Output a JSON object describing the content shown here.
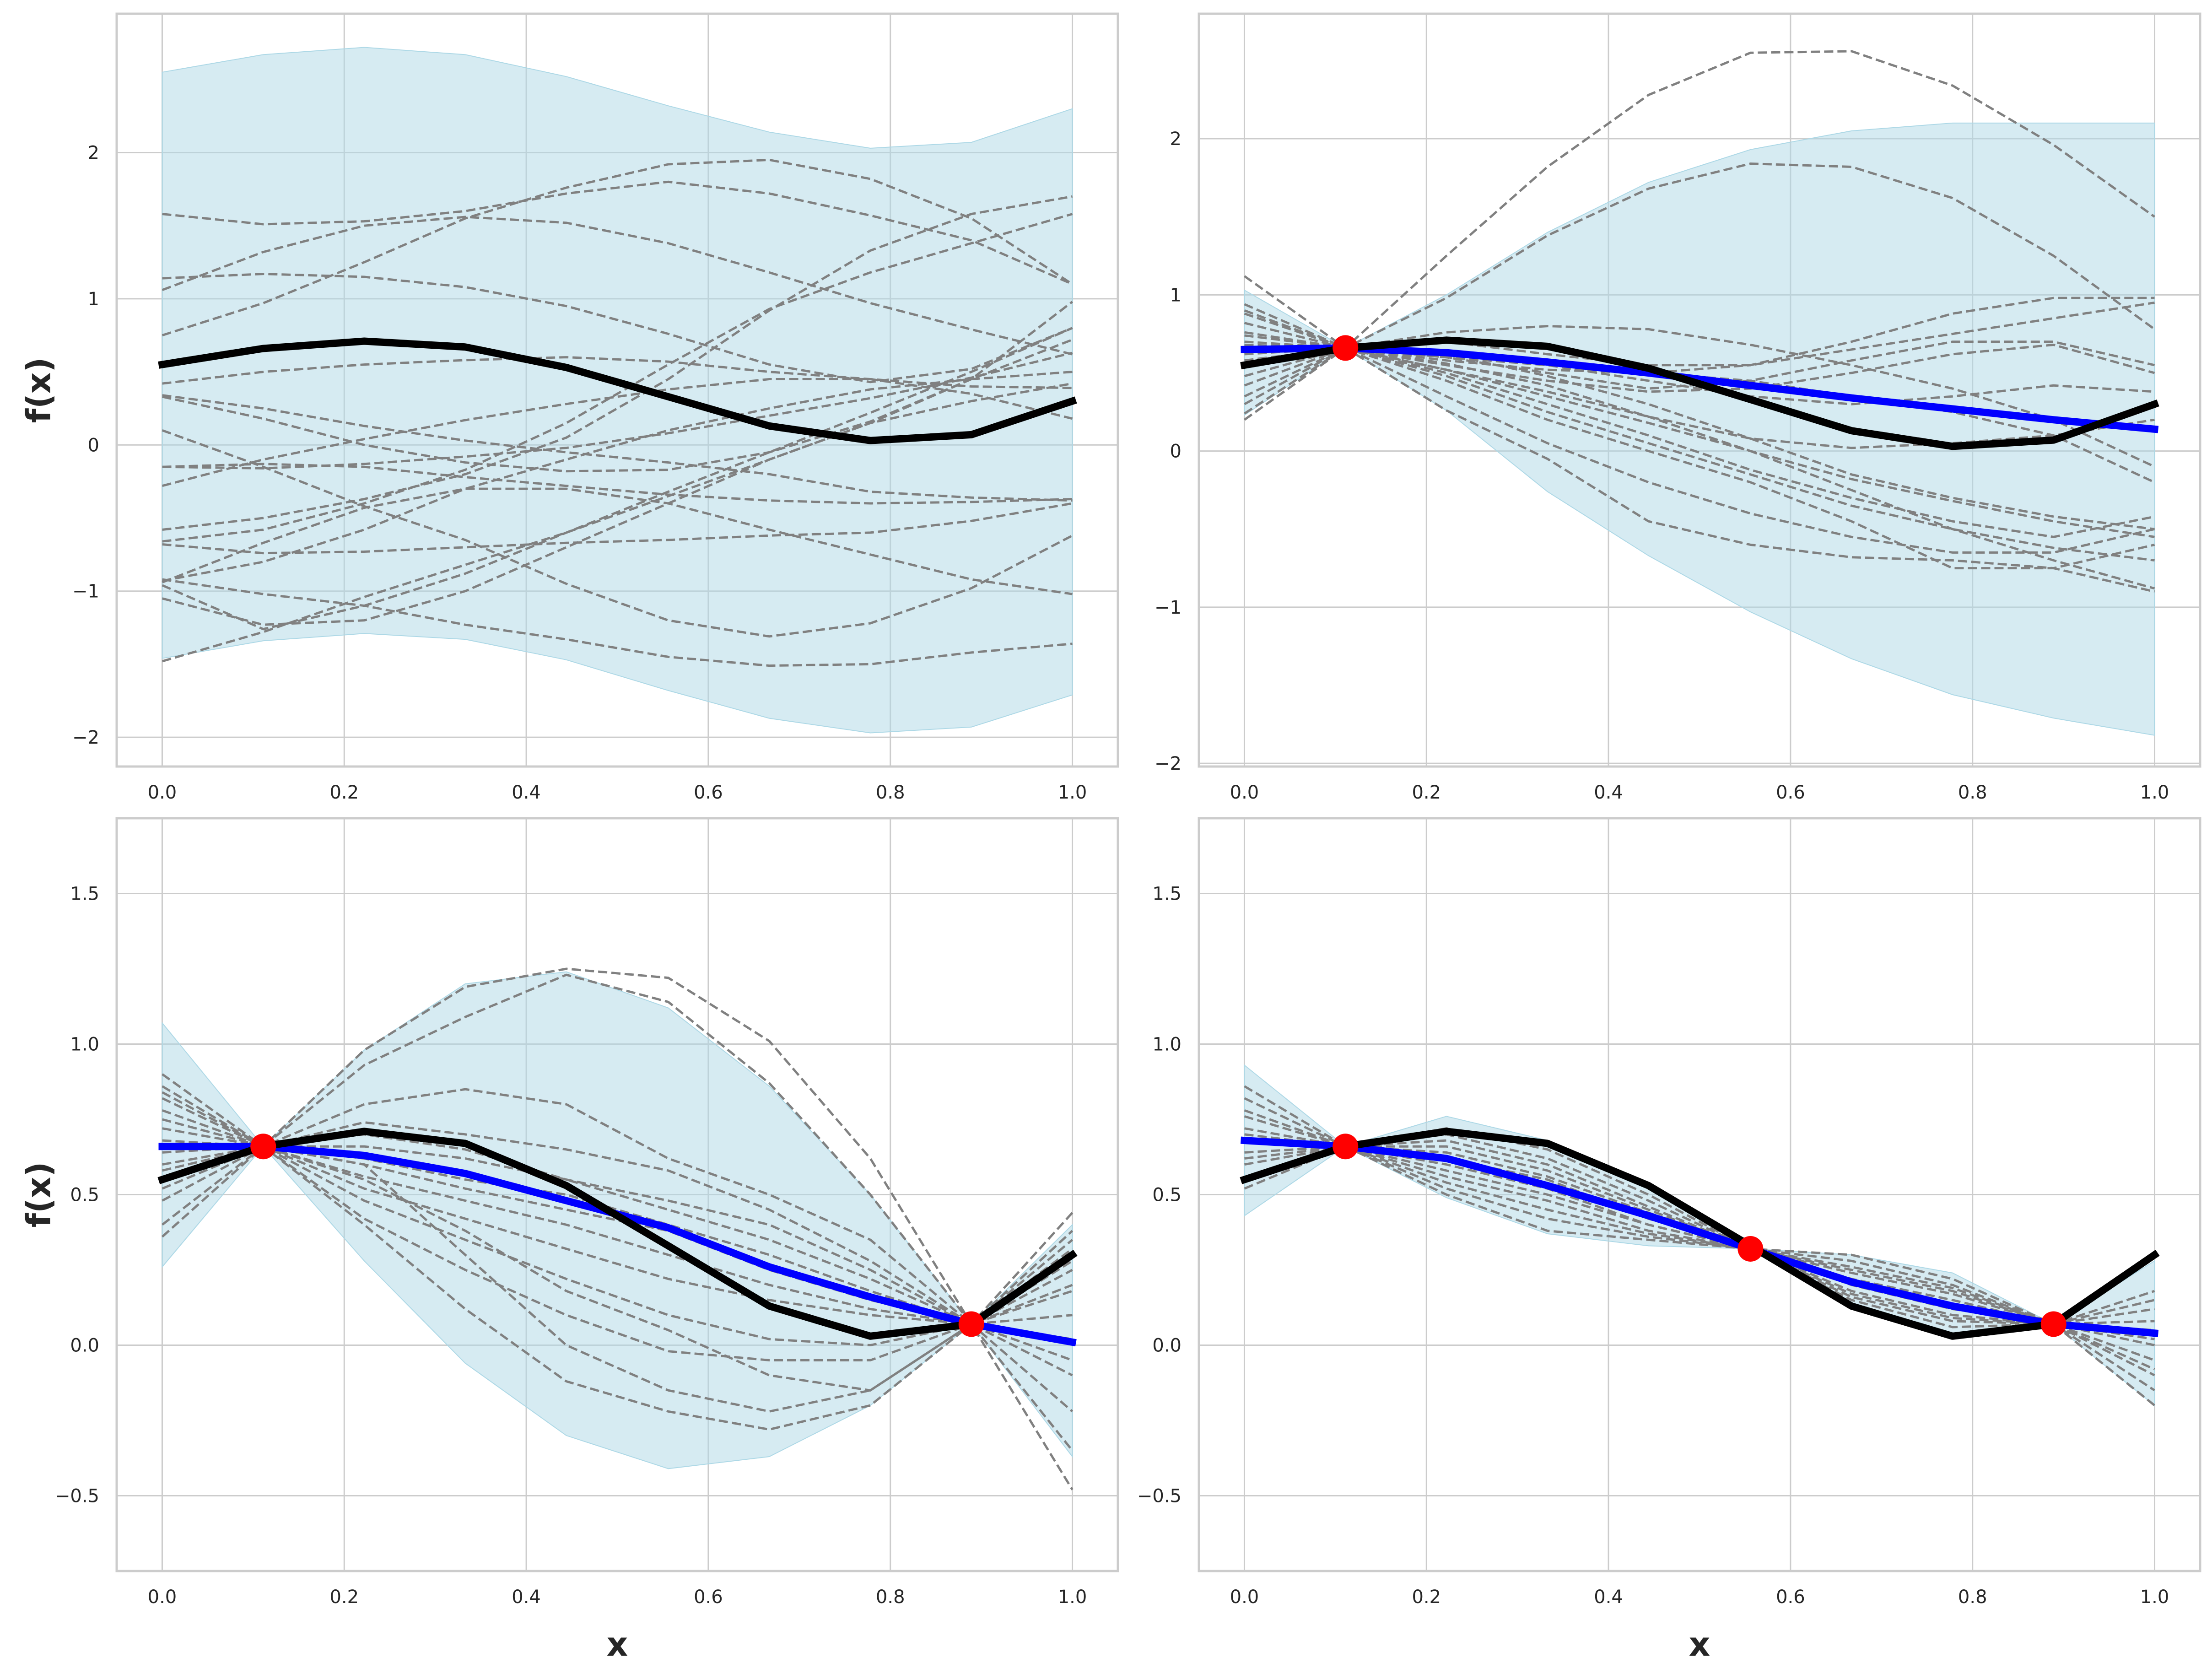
{
  "figure": {
    "colors": {
      "background": "#ffffff",
      "axes_face": "#ffffff",
      "axes_edge": "#cccccc",
      "grid": "#cccccc",
      "band": "#add8e6",
      "samples": "#808080",
      "true_function": "#000000",
      "posterior_mean": "#0000ff",
      "observations": "#ff0000",
      "text": "#262626"
    }
  },
  "chart_data": [
    {
      "type": "line",
      "title": "",
      "xlabel": "",
      "ylabel": "f(x)",
      "xlim": [
        -0.05,
        1.05
      ],
      "ylim": [
        -2.2,
        2.95
      ],
      "grid": true,
      "xticks": [
        0.0,
        0.2,
        0.4,
        0.6,
        0.8,
        1.0
      ],
      "xtick_labels": [
        "0.0",
        "0.2",
        "0.4",
        "0.6",
        "0.8",
        "1.0"
      ],
      "yticks": [
        -2,
        -1,
        0,
        1,
        2
      ],
      "ytick_labels": [
        "−2",
        "−1",
        "0",
        "1",
        "2"
      ],
      "x": [
        0.0,
        0.111,
        0.222,
        0.333,
        0.444,
        0.556,
        0.667,
        0.778,
        0.889,
        1.0
      ],
      "true_function": [
        0.55,
        0.66,
        0.71,
        0.67,
        0.53,
        0.33,
        0.13,
        0.03,
        0.07,
        0.3
      ],
      "posterior_mean": null,
      "band_upper": [
        2.55,
        2.67,
        2.72,
        2.67,
        2.52,
        2.32,
        2.14,
        2.03,
        2.07,
        2.3
      ],
      "band_lower": [
        -1.46,
        -1.34,
        -1.29,
        -1.33,
        -1.47,
        -1.68,
        -1.87,
        -1.97,
        -1.93,
        -1.71
      ],
      "observations": [],
      "samples": [
        [
          1.58,
          1.51,
          1.53,
          1.6,
          1.72,
          1.8,
          1.72,
          1.57,
          1.4,
          1.1
        ],
        [
          1.14,
          1.17,
          1.15,
          1.08,
          0.95,
          0.76,
          0.55,
          0.43,
          0.52,
          0.8
        ],
        [
          1.06,
          1.32,
          1.5,
          1.56,
          1.52,
          1.38,
          1.18,
          0.97,
          0.79,
          0.62
        ],
        [
          0.75,
          0.97,
          1.25,
          1.55,
          1.76,
          1.92,
          1.95,
          1.82,
          1.55,
          1.1
        ],
        [
          0.42,
          0.5,
          0.55,
          0.58,
          0.6,
          0.57,
          0.5,
          0.45,
          0.4,
          0.39
        ],
        [
          0.34,
          0.25,
          0.13,
          0.03,
          -0.05,
          -0.12,
          -0.2,
          -0.32,
          -0.36,
          -0.38
        ],
        [
          0.33,
          0.18,
          0.0,
          -0.12,
          -0.18,
          -0.17,
          -0.05,
          0.16,
          0.45,
          0.72
        ],
        [
          0.1,
          -0.15,
          -0.42,
          -0.65,
          -0.95,
          -1.2,
          -1.31,
          -1.22,
          -0.98,
          -0.62
        ],
        [
          -0.15,
          -0.16,
          -0.13,
          -0.08,
          -0.02,
          0.08,
          0.2,
          0.32,
          0.46,
          0.63
        ],
        [
          -0.15,
          -0.13,
          -0.15,
          -0.22,
          -0.28,
          -0.34,
          -0.38,
          -0.4,
          -0.39,
          -0.37
        ],
        [
          -0.28,
          -0.1,
          0.04,
          0.17,
          0.28,
          0.38,
          0.45,
          0.45,
          0.35,
          0.18
        ],
        [
          -0.58,
          -0.5,
          -0.37,
          -0.2,
          0.05,
          0.45,
          0.92,
          1.33,
          1.58,
          1.7
        ],
        [
          -0.66,
          -0.58,
          -0.4,
          -0.17,
          0.15,
          0.55,
          0.93,
          1.18,
          1.38,
          1.58
        ],
        [
          -0.68,
          -0.74,
          -0.73,
          -0.7,
          -0.67,
          -0.65,
          -0.62,
          -0.6,
          -0.52,
          -0.4
        ],
        [
          -0.92,
          -1.02,
          -1.1,
          -1.23,
          -1.33,
          -1.45,
          -1.51,
          -1.5,
          -1.42,
          -1.36
        ],
        [
          -0.94,
          -0.67,
          -0.43,
          -0.3,
          -0.3,
          -0.4,
          -0.58,
          -0.75,
          -0.92,
          -1.02
        ],
        [
          -1.05,
          -1.23,
          -1.2,
          -1.0,
          -0.7,
          -0.4,
          -0.1,
          0.15,
          0.3,
          0.42
        ],
        [
          -0.96,
          -1.26,
          -1.1,
          -0.88,
          -0.6,
          -0.32,
          -0.05,
          0.22,
          0.5,
          0.8
        ],
        [
          -1.48,
          -1.28,
          -1.04,
          -0.82,
          -0.6,
          -0.35,
          -0.1,
          0.15,
          0.45,
          0.98
        ],
        [
          -0.93,
          -0.8,
          -0.58,
          -0.3,
          -0.1,
          0.1,
          0.25,
          0.38,
          0.45,
          0.5
        ]
      ]
    },
    {
      "type": "line",
      "title": "",
      "xlabel": "",
      "ylabel": "",
      "xlim": [
        -0.05,
        1.05
      ],
      "ylim": [
        -2.02,
        2.8
      ],
      "grid": true,
      "xticks": [
        0.0,
        0.2,
        0.4,
        0.6,
        0.8,
        1.0
      ],
      "xtick_labels": [
        "0.0",
        "0.2",
        "0.4",
        "0.6",
        "0.8",
        "1.0"
      ],
      "yticks": [
        -2,
        -1,
        0,
        1,
        2
      ],
      "ytick_labels": [
        "−2",
        "−1",
        "0",
        "1",
        "2"
      ],
      "x": [
        0.0,
        0.111,
        0.222,
        0.333,
        0.444,
        0.556,
        0.667,
        0.778,
        0.889,
        1.0
      ],
      "true_function": [
        0.55,
        0.66,
        0.71,
        0.67,
        0.53,
        0.33,
        0.13,
        0.03,
        0.07,
        0.3
      ],
      "posterior_mean": [
        0.65,
        0.66,
        0.63,
        0.57,
        0.5,
        0.42,
        0.34,
        0.27,
        0.2,
        0.14
      ],
      "band_upper": [
        1.03,
        0.66,
        1.0,
        1.4,
        1.72,
        1.93,
        2.05,
        2.1,
        2.1,
        2.1
      ],
      "band_lower": [
        0.23,
        0.66,
        0.26,
        -0.26,
        -0.67,
        -1.03,
        -1.33,
        -1.56,
        -1.71,
        -1.82
      ],
      "observations": [
        {
          "x": 0.111,
          "y": 0.66
        }
      ],
      "samples": [
        [
          1.12,
          0.66,
          1.25,
          1.82,
          2.28,
          2.55,
          2.56,
          2.34,
          1.96,
          1.5
        ],
        [
          0.2,
          0.66,
          0.98,
          1.38,
          1.68,
          1.84,
          1.82,
          1.62,
          1.25,
          0.78
        ],
        [
          0.94,
          0.66,
          0.76,
          0.8,
          0.78,
          0.68,
          0.55,
          0.4,
          0.2,
          -0.1
        ],
        [
          0.88,
          0.66,
          0.7,
          0.62,
          0.55,
          0.55,
          0.65,
          0.75,
          0.85,
          0.95
        ],
        [
          0.82,
          0.66,
          0.6,
          0.5,
          0.4,
          0.45,
          0.58,
          0.7,
          0.7,
          0.55
        ],
        [
          0.76,
          0.66,
          0.55,
          0.45,
          0.38,
          0.4,
          0.5,
          0.62,
          0.68,
          0.5
        ],
        [
          0.7,
          0.66,
          0.6,
          0.55,
          0.5,
          0.55,
          0.7,
          0.88,
          0.98,
          0.98
        ],
        [
          0.62,
          0.66,
          0.62,
          0.55,
          0.45,
          0.35,
          0.3,
          0.35,
          0.42,
          0.38
        ],
        [
          0.55,
          0.66,
          0.56,
          0.42,
          0.22,
          0.0,
          -0.18,
          -0.32,
          -0.45,
          -0.55
        ],
        [
          0.48,
          0.66,
          0.5,
          0.3,
          0.1,
          -0.12,
          -0.3,
          -0.45,
          -0.55,
          -0.42
        ],
        [
          0.42,
          0.66,
          0.48,
          0.25,
          0.05,
          -0.15,
          -0.35,
          -0.5,
          -0.62,
          -0.7
        ],
        [
          0.3,
          0.66,
          0.35,
          0.05,
          -0.2,
          -0.4,
          -0.55,
          -0.65,
          -0.65,
          -0.5
        ],
        [
          0.24,
          0.66,
          0.26,
          -0.05,
          -0.45,
          -0.6,
          -0.68,
          -0.7,
          -0.75,
          -0.9
        ],
        [
          0.58,
          0.66,
          0.58,
          0.52,
          0.5,
          0.45,
          0.35,
          0.25,
          0.1,
          -0.2
        ],
        [
          0.68,
          0.66,
          0.62,
          0.48,
          0.3,
          0.08,
          -0.15,
          -0.3,
          -0.42,
          -0.5
        ],
        [
          0.74,
          0.66,
          0.52,
          0.35,
          0.18,
          0.0,
          -0.25,
          -0.5,
          -0.7,
          -0.88
        ],
        [
          0.35,
          0.66,
          0.52,
          0.38,
          0.22,
          0.08,
          0.02,
          0.05,
          0.1,
          0.2
        ],
        [
          0.9,
          0.66,
          0.45,
          0.2,
          0.0,
          -0.2,
          -0.45,
          -0.75,
          -0.75,
          -0.6
        ]
      ]
    },
    {
      "type": "line",
      "title": "",
      "xlabel": "x",
      "ylabel": "f(x)",
      "xlim": [
        -0.05,
        1.05
      ],
      "ylim": [
        -0.75,
        1.75
      ],
      "grid": true,
      "xticks": [
        0.0,
        0.2,
        0.4,
        0.6,
        0.8,
        1.0
      ],
      "xtick_labels": [
        "0.0",
        "0.2",
        "0.4",
        "0.6",
        "0.8",
        "1.0"
      ],
      "yticks": [
        -0.5,
        0.0,
        0.5,
        1.0,
        1.5
      ],
      "ytick_labels": [
        "−0.5",
        "0.0",
        "0.5",
        "1.0",
        "1.5"
      ],
      "x": [
        0.0,
        0.111,
        0.222,
        0.333,
        0.444,
        0.556,
        0.667,
        0.778,
        0.889,
        1.0
      ],
      "true_function": [
        0.55,
        0.66,
        0.71,
        0.67,
        0.53,
        0.33,
        0.13,
        0.03,
        0.07,
        0.3
      ],
      "posterior_mean": [
        0.66,
        0.66,
        0.63,
        0.57,
        0.48,
        0.39,
        0.26,
        0.16,
        0.07,
        0.01
      ],
      "band_upper": [
        1.07,
        0.66,
        0.98,
        1.2,
        1.24,
        1.12,
        0.86,
        0.5,
        0.07,
        0.4
      ],
      "band_lower": [
        0.26,
        0.66,
        0.28,
        -0.06,
        -0.3,
        -0.41,
        -0.37,
        -0.2,
        0.07,
        -0.37
      ],
      "observations": [
        {
          "x": 0.111,
          "y": 0.66
        },
        {
          "x": 0.889,
          "y": 0.07
        }
      ],
      "samples": [
        [
          0.9,
          0.66,
          0.98,
          1.19,
          1.25,
          1.22,
          1.01,
          0.62,
          0.07,
          -0.48
        ],
        [
          0.86,
          0.66,
          0.93,
          1.09,
          1.23,
          1.14,
          0.87,
          0.5,
          0.07,
          -0.35
        ],
        [
          0.82,
          0.66,
          0.8,
          0.85,
          0.8,
          0.62,
          0.5,
          0.35,
          0.07,
          -0.22
        ],
        [
          0.78,
          0.66,
          0.74,
          0.7,
          0.65,
          0.58,
          0.45,
          0.28,
          0.07,
          -0.1
        ],
        [
          0.72,
          0.66,
          0.66,
          0.62,
          0.55,
          0.45,
          0.35,
          0.22,
          0.07,
          0.02
        ],
        [
          0.68,
          0.66,
          0.62,
          0.55,
          0.5,
          0.4,
          0.3,
          0.18,
          0.07,
          0.1
        ],
        [
          0.64,
          0.66,
          0.6,
          0.52,
          0.45,
          0.38,
          0.25,
          0.15,
          0.07,
          0.18
        ],
        [
          0.58,
          0.66,
          0.56,
          0.48,
          0.4,
          0.3,
          0.2,
          0.12,
          0.07,
          0.25
        ],
        [
          0.52,
          0.66,
          0.52,
          0.42,
          0.32,
          0.22,
          0.15,
          0.1,
          0.07,
          0.32
        ],
        [
          0.48,
          0.66,
          0.48,
          0.35,
          0.22,
          0.1,
          0.02,
          0.0,
          0.07,
          0.38
        ],
        [
          0.4,
          0.66,
          0.42,
          0.25,
          0.1,
          -0.02,
          -0.05,
          -0.05,
          0.07,
          0.44
        ],
        [
          0.36,
          0.66,
          0.4,
          0.12,
          -0.12,
          -0.22,
          -0.28,
          -0.2,
          0.07,
          0.2
        ],
        [
          0.6,
          0.66,
          0.55,
          0.38,
          0.18,
          0.05,
          -0.1,
          -0.15,
          0.07,
          0.35
        ],
        [
          0.75,
          0.66,
          0.7,
          0.65,
          0.55,
          0.48,
          0.4,
          0.25,
          0.07,
          -0.05
        ],
        [
          0.84,
          0.66,
          0.6,
          0.3,
          0.0,
          -0.15,
          -0.22,
          -0.15,
          0.07,
          0.28
        ]
      ]
    },
    {
      "type": "line",
      "title": "",
      "xlabel": "x",
      "ylabel": "",
      "xlim": [
        -0.05,
        1.05
      ],
      "ylim": [
        -0.75,
        1.75
      ],
      "grid": true,
      "xticks": [
        0.0,
        0.2,
        0.4,
        0.6,
        0.8,
        1.0
      ],
      "xtick_labels": [
        "0.0",
        "0.2",
        "0.4",
        "0.6",
        "0.8",
        "1.0"
      ],
      "yticks": [
        -0.5,
        0.0,
        0.5,
        1.0,
        1.5
      ],
      "ytick_labels": [
        "−0.5",
        "0.0",
        "0.5",
        "1.0",
        "1.5"
      ],
      "x": [
        0.0,
        0.111,
        0.222,
        0.333,
        0.444,
        0.556,
        0.667,
        0.778,
        0.889,
        1.0
      ],
      "true_function": [
        0.55,
        0.66,
        0.71,
        0.67,
        0.53,
        0.33,
        0.13,
        0.03,
        0.07,
        0.3
      ],
      "posterior_mean": [
        0.68,
        0.66,
        0.62,
        0.53,
        0.43,
        0.32,
        0.21,
        0.13,
        0.07,
        0.04
      ],
      "band_upper": [
        0.93,
        0.66,
        0.76,
        0.68,
        0.53,
        0.32,
        0.3,
        0.24,
        0.07,
        0.28
      ],
      "band_lower": [
        0.43,
        0.66,
        0.49,
        0.37,
        0.33,
        0.32,
        0.13,
        0.03,
        0.07,
        -0.2
      ],
      "observations": [
        {
          "x": 0.111,
          "y": 0.66
        },
        {
          "x": 0.556,
          "y": 0.32
        },
        {
          "x": 0.889,
          "y": 0.07
        }
      ],
      "samples": [
        [
          0.86,
          0.66,
          0.72,
          0.65,
          0.5,
          0.32,
          0.3,
          0.22,
          0.07,
          0.18
        ],
        [
          0.82,
          0.66,
          0.7,
          0.62,
          0.48,
          0.32,
          0.28,
          0.2,
          0.07,
          0.12
        ],
        [
          0.76,
          0.66,
          0.66,
          0.58,
          0.45,
          0.32,
          0.25,
          0.18,
          0.07,
          0.05
        ],
        [
          0.72,
          0.66,
          0.62,
          0.55,
          0.42,
          0.32,
          0.22,
          0.15,
          0.07,
          0.0
        ],
        [
          0.68,
          0.66,
          0.6,
          0.52,
          0.4,
          0.32,
          0.2,
          0.12,
          0.07,
          -0.05
        ],
        [
          0.64,
          0.66,
          0.56,
          0.48,
          0.38,
          0.32,
          0.18,
          0.1,
          0.07,
          -0.1
        ],
        [
          0.6,
          0.66,
          0.52,
          0.42,
          0.36,
          0.32,
          0.16,
          0.08,
          0.07,
          -0.15
        ],
        [
          0.55,
          0.66,
          0.5,
          0.38,
          0.35,
          0.32,
          0.15,
          0.06,
          0.07,
          -0.2
        ],
        [
          0.78,
          0.66,
          0.68,
          0.6,
          0.46,
          0.32,
          0.26,
          0.19,
          0.07,
          0.08
        ],
        [
          0.7,
          0.66,
          0.64,
          0.56,
          0.44,
          0.32,
          0.24,
          0.17,
          0.07,
          0.15
        ],
        [
          0.62,
          0.66,
          0.58,
          0.5,
          0.4,
          0.32,
          0.21,
          0.13,
          0.07,
          -0.08
        ],
        [
          0.52,
          0.66,
          0.54,
          0.45,
          0.37,
          0.32,
          0.17,
          0.09,
          0.07,
          0.02
        ]
      ]
    }
  ]
}
